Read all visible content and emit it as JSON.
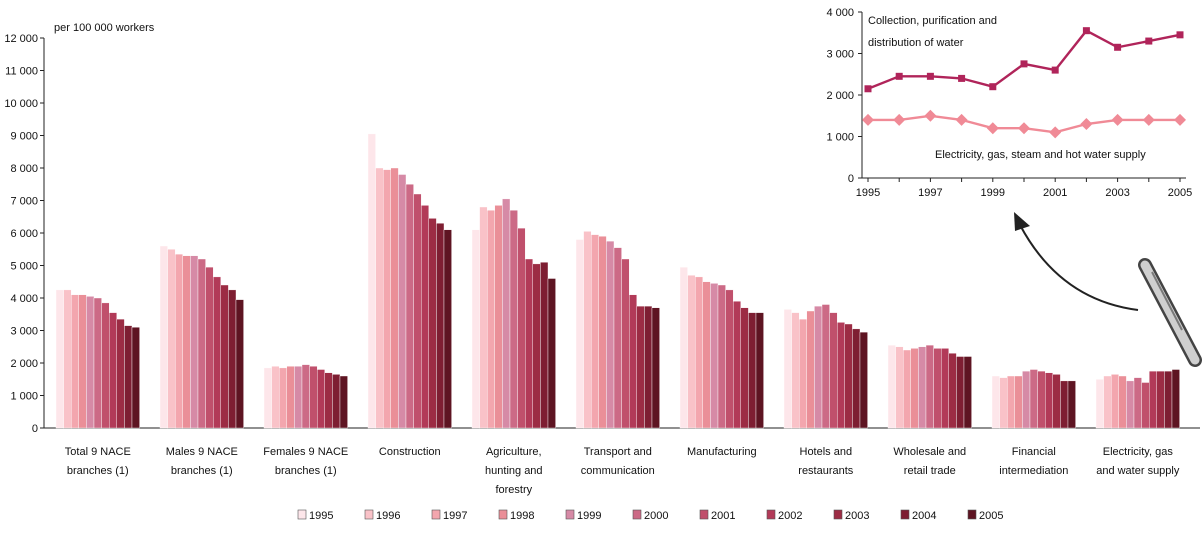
{
  "chart_data": [
    {
      "type": "bar",
      "ylabel": "per 100 000 workers",
      "ylim": [
        0,
        12000
      ],
      "yticks": [
        "0",
        "1 000",
        "2 000",
        "3 000",
        "4 000",
        "5 000",
        "6 000",
        "7 000",
        "8 000",
        "9 000",
        "10 000",
        "11 000",
        "12 000"
      ],
      "grid": false,
      "legend_placement": "bottom",
      "categories": [
        [
          "Total 9 NACE",
          "branches (1)"
        ],
        [
          "Males 9 NACE",
          "branches (1)"
        ],
        [
          "Females 9 NACE",
          "branches (1)"
        ],
        [
          "Construction"
        ],
        [
          "Agriculture,",
          "hunting and",
          "forestry"
        ],
        [
          "Transport and",
          "communication"
        ],
        [
          "Manufacturing"
        ],
        [
          "Hotels and",
          "restaurants"
        ],
        [
          "Wholesale and",
          "retail trade"
        ],
        [
          "Financial",
          "intermediation"
        ],
        [
          "Electricity, gas",
          "and water supply"
        ]
      ],
      "series": [
        {
          "name": "1995",
          "color": "#fde6ea",
          "values": [
            4250,
            5600,
            1850,
            9050,
            6100,
            5800,
            4950,
            3650,
            2550,
            1600,
            1500
          ]
        },
        {
          "name": "1996",
          "color": "#f9c2c8",
          "values": [
            4250,
            5500,
            1900,
            8000,
            6800,
            6050,
            4700,
            3550,
            2500,
            1550,
            1600
          ]
        },
        {
          "name": "1997",
          "color": "#f3a6ae",
          "values": [
            4100,
            5350,
            1850,
            7950,
            6700,
            5950,
            4650,
            3350,
            2400,
            1600,
            1650
          ]
        },
        {
          "name": "1998",
          "color": "#ea8f98",
          "values": [
            4100,
            5300,
            1900,
            8000,
            6850,
            5900,
            4500,
            3600,
            2450,
            1600,
            1600
          ]
        },
        {
          "name": "1999",
          "color": "#d68aa6",
          "values": [
            4050,
            5300,
            1900,
            7800,
            7050,
            5750,
            4450,
            3750,
            2500,
            1750,
            1450
          ]
        },
        {
          "name": "2000",
          "color": "#cc6a86",
          "values": [
            4000,
            5200,
            1950,
            7500,
            6700,
            5550,
            4400,
            3800,
            2550,
            1800,
            1550
          ]
        },
        {
          "name": "2001",
          "color": "#c0506c",
          "values": [
            3850,
            4950,
            1900,
            7200,
            6150,
            5200,
            4250,
            3550,
            2450,
            1750,
            1400
          ]
        },
        {
          "name": "2002",
          "color": "#b23a58",
          "values": [
            3550,
            4650,
            1800,
            6850,
            5200,
            4100,
            3900,
            3250,
            2450,
            1700,
            1750
          ]
        },
        {
          "name": "2003",
          "color": "#9c2c44",
          "values": [
            3350,
            4400,
            1700,
            6450,
            5050,
            3750,
            3700,
            3200,
            2300,
            1650,
            1750
          ]
        },
        {
          "name": "2004",
          "color": "#7e1e32",
          "values": [
            3150,
            4250,
            1650,
            6300,
            5100,
            3750,
            3550,
            3050,
            2200,
            1450,
            1750
          ]
        },
        {
          "name": "2005",
          "color": "#5e1422",
          "values": [
            3100,
            3950,
            1600,
            6100,
            4600,
            3700,
            3550,
            2950,
            2200,
            1450,
            1800
          ]
        }
      ]
    },
    {
      "type": "line",
      "x": [
        1995,
        1996,
        1997,
        1998,
        1999,
        2000,
        2001,
        2002,
        2003,
        2004,
        2005
      ],
      "xticks": [
        "1995",
        "1997",
        "1999",
        "2001",
        "2003",
        "2005"
      ],
      "ylim": [
        0,
        4000
      ],
      "yticks": [
        "0",
        "1 000",
        "2 000",
        "3 000",
        "4 000"
      ],
      "series": [
        {
          "name": "Collection, purification and distribution of water",
          "label_lines": [
            "Collection, purification and",
            "distribution of water"
          ],
          "marker": "square",
          "color": "#b0245a",
          "values": [
            2150,
            2450,
            2450,
            2400,
            2200,
            2750,
            2600,
            3550,
            3150,
            3300,
            3450
          ]
        },
        {
          "name": "Electricity, gas, steam and hot water supply",
          "label_lines": [
            "Electricity, gas, steam and hot water supply"
          ],
          "marker": "diamond",
          "color": "#f08a96",
          "values": [
            1400,
            1400,
            1500,
            1400,
            1200,
            1200,
            1100,
            1300,
            1400,
            1400,
            1400
          ]
        }
      ]
    }
  ]
}
